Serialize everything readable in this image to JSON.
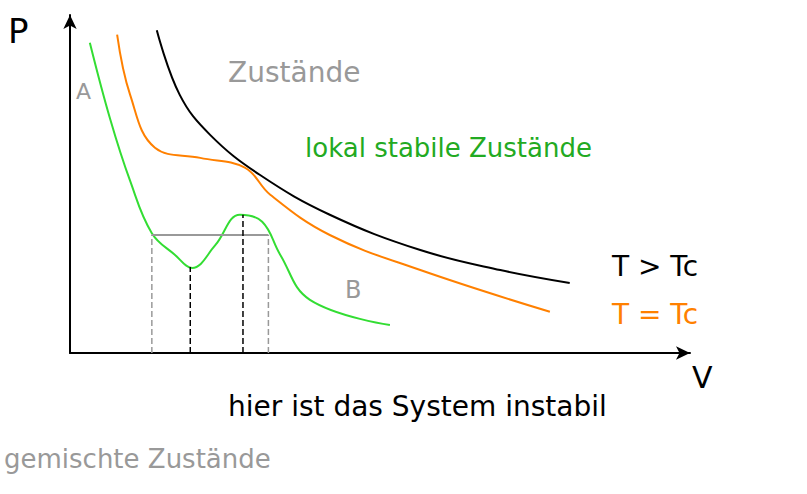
{
  "chart_data": {
    "type": "line",
    "x_label": "V",
    "y_label": "P",
    "xlim": [
      0,
      10
    ],
    "ylim": [
      0,
      11
    ],
    "grid": false,
    "tick_labels": false,
    "series": [
      {
        "color": "#000000",
        "line_style": "solid",
        "x": [
          1.4,
          1.77,
          2.26,
          3.06,
          4.19,
          5.65,
          6.94,
          8.06
        ],
        "values": [
          10.5,
          8.4,
          7.1,
          5.8,
          4.5,
          3.35,
          2.7,
          2.28
        ]
      },
      {
        "color": "#ff8000",
        "line_style": "solid",
        "x": [
          0.76,
          0.97,
          1.37,
          2.1,
          2.82,
          3.23,
          4.19,
          5.65,
          7.74
        ],
        "values": [
          10.36,
          8.4,
          6.68,
          6.35,
          6.03,
          5.15,
          3.84,
          2.7,
          1.34
        ]
      },
      {
        "color": "#33dd33",
        "line_style": "solid",
        "x": [
          0.32,
          0.65,
          0.97,
          1.32,
          1.69,
          1.97,
          2.34,
          2.74,
          3.1,
          3.39,
          3.87,
          5.16
        ],
        "values": [
          10.1,
          7.6,
          5.6,
          3.9,
          3.2,
          2.77,
          3.5,
          4.5,
          4.27,
          3.2,
          1.73,
          0.91
        ]
      },
      {
        "color": "#999999",
        "line_style": "solid",
        "x": [
          1.32,
          3.2
        ],
        "values": [
          3.84,
          3.84
        ]
      },
      {
        "color": "#999999",
        "line_style": "dashed",
        "x": [
          1.32,
          1.32
        ],
        "values": [
          0,
          3.84
        ]
      },
      {
        "color": "#999999",
        "line_style": "dashed",
        "x": [
          3.2,
          3.2
        ],
        "values": [
          0,
          3.84
        ]
      },
      {
        "color": "#000000",
        "line_style": "dashed",
        "x": [
          1.94,
          1.94
        ],
        "values": [
          0,
          2.8
        ]
      },
      {
        "color": "#000000",
        "line_style": "dashed",
        "x": [
          2.79,
          2.79
        ],
        "values": [
          0,
          4.5
        ]
      }
    ],
    "annotations": [
      {
        "text": "A",
        "color": "#999999"
      },
      {
        "text": "Zustände",
        "color": "#999999"
      },
      {
        "text": "lokal stabile Zustände",
        "color": "#22aa22"
      },
      {
        "text": "B",
        "color": "#999999"
      },
      {
        "text": "T > Tc",
        "color": "#000000"
      },
      {
        "text": "T = Tc",
        "color": "#ff8000"
      },
      {
        "text": "hier ist das System instabil",
        "color": "#000000"
      },
      {
        "text": "gemischte Zustände",
        "color": "#999999"
      }
    ]
  }
}
